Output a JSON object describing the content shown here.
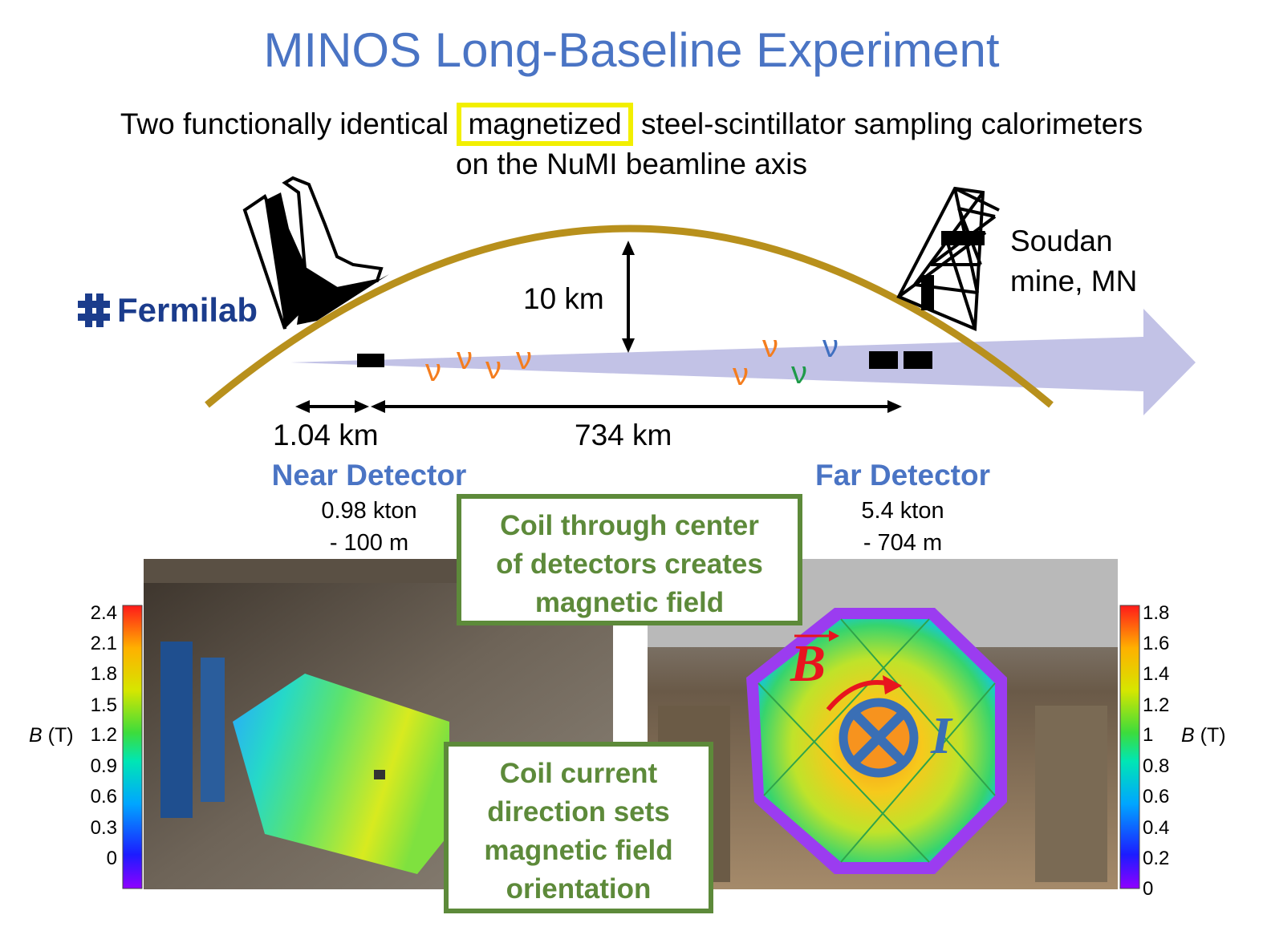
{
  "title": "MINOS Long-Baseline Experiment",
  "subtitle": {
    "before": "Two functionally identical",
    "highlight": "magnetized",
    "after": "steel-scintillator sampling calorimeters",
    "line2": "on the NuMI beamline axis"
  },
  "logo": {
    "text": "Fermilab"
  },
  "far_site": {
    "line1": "Soudan",
    "line2": "mine, MN"
  },
  "depth_label": "10 km",
  "distances": {
    "near": "1.04 km",
    "far": "734 km"
  },
  "neutrinos": {
    "symbol": "ν"
  },
  "near_detector": {
    "name": "Near Detector",
    "mass": "0.98 kton",
    "depth": "- 100  m"
  },
  "far_detector": {
    "name": "Far Detector",
    "mass": "5.4 kton",
    "depth": "- 704 m"
  },
  "callouts": {
    "top": [
      "Coil through center",
      "of detectors creates",
      "magnetic field"
    ],
    "bottom": [
      "Coil current",
      "direction sets",
      "magnetic field",
      "orientation"
    ]
  },
  "colorbars": {
    "left": {
      "ticks": [
        "2.4",
        "2.1",
        "1.8",
        "1.5",
        "1.2",
        "0.9",
        "0.6",
        "0.3",
        "0"
      ]
    },
    "right": {
      "ticks": [
        "1.8",
        "1.6",
        "1.4",
        "1.2",
        "1",
        "0.8",
        "0.6",
        "0.4",
        "0.2",
        "0"
      ]
    },
    "label_var": "B",
    "label_unit": "(T)"
  },
  "field_symbols": {
    "field": "B",
    "current": "I"
  },
  "colors": {
    "title_blue": "#4a74c4",
    "earth_arc": "#b8901c",
    "beam": "#c2c2e6",
    "callout_green": "#5d8a3a",
    "highlight_yellow": "#f2ef00",
    "nu_orange": "#f47d1e",
    "nu_green": "#1e9a4a",
    "nu_blue": "#3f6fc0"
  }
}
